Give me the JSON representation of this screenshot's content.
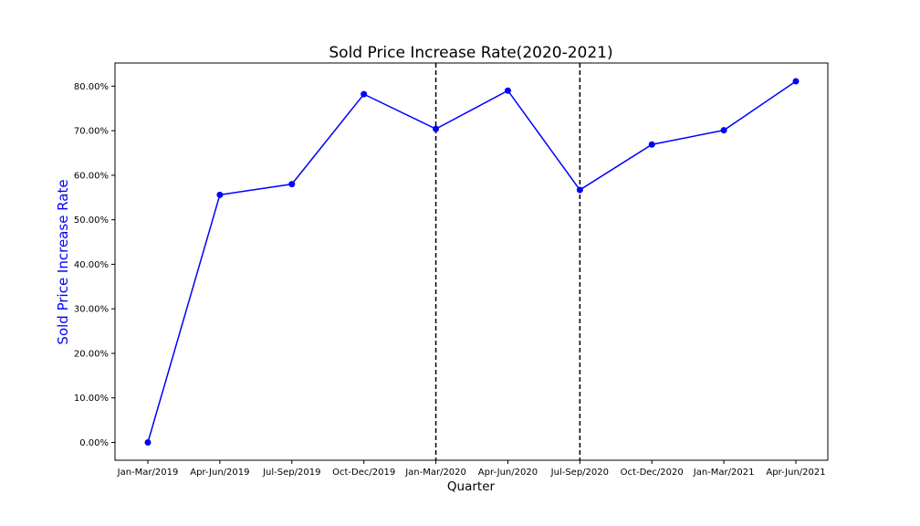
{
  "chart_data": {
    "type": "line",
    "title": "Sold Price Increase Rate(2020-2021)",
    "xlabel": "Quarter",
    "ylabel": "Sold Price Increase Rate",
    "categories": [
      "Jan-Mar/2019",
      "Apr-Jun/2019",
      "Jul-Sep/2019",
      "Oct-Dec/2019",
      "Jan-Mar/2020",
      "Apr-Jun/2020",
      "Jul-Sep/2020",
      "Oct-Dec/2020",
      "Jan-Mar/2021",
      "Apr-Jun/2021"
    ],
    "series": [
      {
        "values": [
          0.0,
          55.6,
          58.0,
          78.2,
          70.4,
          79.0,
          56.7,
          66.9,
          70.1,
          81.1
        ]
      }
    ],
    "yticks": [
      0,
      10,
      20,
      30,
      40,
      50,
      60,
      70,
      80
    ],
    "ytick_labels": [
      "0.00%",
      "10.00%",
      "20.00%",
      "30.00%",
      "40.00%",
      "50.00%",
      "60.00%",
      "70.00%",
      "80.00%"
    ],
    "ylim": [
      -4.0,
      85.2
    ],
    "vlines": [
      "Jan-Mar/2020",
      "Jul-Sep/2020"
    ],
    "grid": false,
    "colors": {
      "line": "#0000ff",
      "ylabel": "#0000ff",
      "vline": "#000000"
    }
  }
}
